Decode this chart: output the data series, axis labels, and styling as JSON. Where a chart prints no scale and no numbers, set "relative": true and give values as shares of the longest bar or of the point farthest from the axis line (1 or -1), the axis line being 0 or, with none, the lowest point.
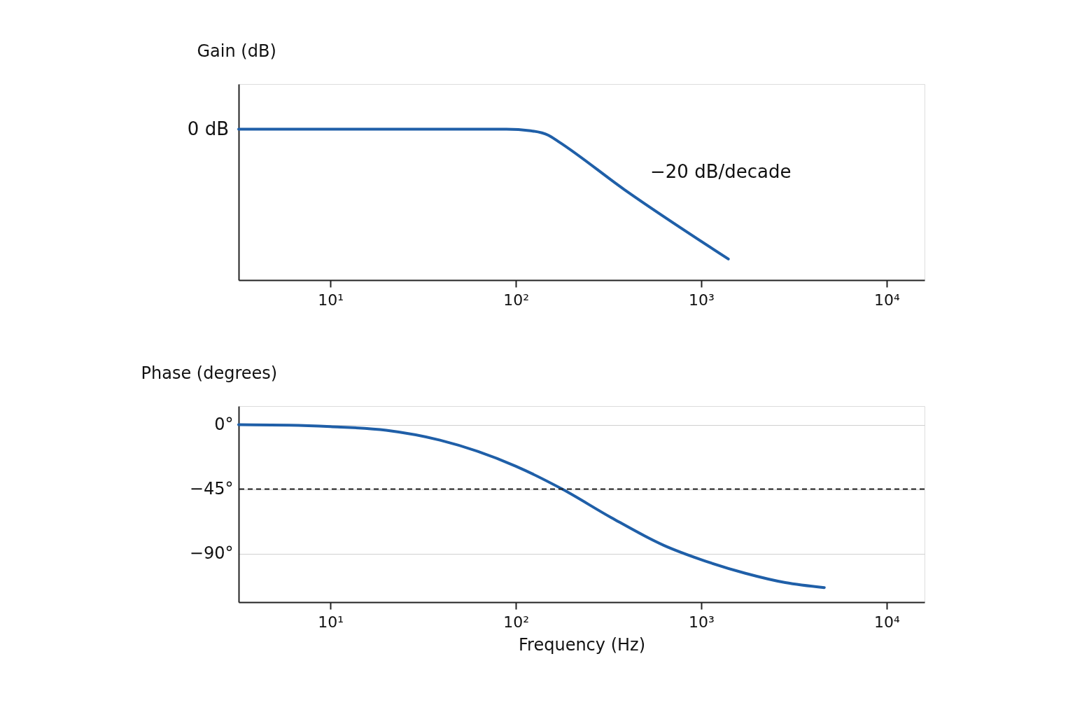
{
  "chart_data": [
    {
      "type": "line",
      "relative": true,
      "ylabel": "Gain (dB)",
      "log": "x",
      "xlim": [
        3.2,
        16000
      ],
      "xticks": [
        {
          "value": 10,
          "label": "10¹"
        },
        {
          "value": 100,
          "label": "10²"
        },
        {
          "value": 1000,
          "label": "10³"
        },
        {
          "value": 10000,
          "label": "10⁴"
        }
      ],
      "series": [
        {
          "color": "#1f5fa8",
          "x": [
            3.2,
            50,
            89,
            120,
            150,
            169,
            385,
            1400
          ],
          "values": [
            1,
            1,
            1,
            0.99,
            0.96,
            0.92,
            0.6,
            0.14
          ]
        }
      ],
      "annotations": [
        "0 dB",
        "−20 dB/decade"
      ],
      "marker": "none",
      "line_style": "solid"
    },
    {
      "type": "line",
      "ylabel": "Phase (degrees)",
      "xlabel": "Frequency (Hz)",
      "log": "x",
      "xlim": [
        3.2,
        16000
      ],
      "ylim": [
        -124,
        13
      ],
      "xticks": [
        {
          "value": 10,
          "label": "10¹"
        },
        {
          "value": 100,
          "label": "10²"
        },
        {
          "value": 1000,
          "label": "10³"
        },
        {
          "value": 10000,
          "label": "10⁴"
        }
      ],
      "yticks": [
        {
          "value": 0,
          "label": "0°"
        },
        {
          "value": -45,
          "label": "−45°"
        },
        {
          "value": -90,
          "label": "−90°"
        }
      ],
      "series": [
        {
          "color": "#1f5fa8",
          "x": [
            3.2,
            6,
            10,
            20,
            39,
            100,
            178,
            327,
            631,
            1000,
            1730,
            2840,
            4610
          ],
          "values": [
            0,
            -0.3,
            -1.3,
            -3.9,
            -10.8,
            -29,
            -45,
            -64.9,
            -84.4,
            -94.3,
            -103.8,
            -110.3,
            -113.8
          ]
        }
      ],
      "ref_lines": [
        {
          "axis": "y",
          "value": -45,
          "color": "#222222",
          "line_style": "dashed"
        }
      ],
      "marker": "none",
      "line_style": "solid",
      "grid": "y"
    }
  ]
}
